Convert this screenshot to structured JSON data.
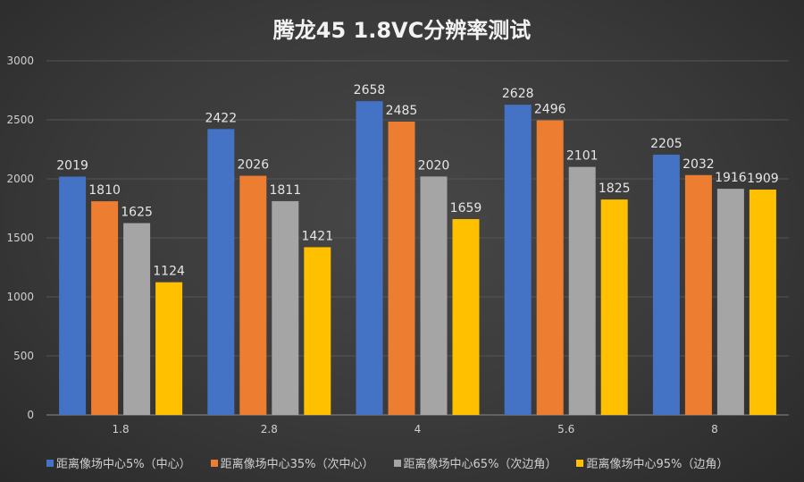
{
  "chart_data": {
    "type": "bar",
    "title": "腾龙45 1.8VC分辨率测试",
    "xlabel": "",
    "ylabel": "",
    "categories": [
      "1.8",
      "2.8",
      "4",
      "5.6",
      "8"
    ],
    "ylim": [
      0,
      3000
    ],
    "yticks": [
      0,
      500,
      1000,
      1500,
      2000,
      2500,
      3000
    ],
    "grid": true,
    "legend_position": "bottom",
    "series": [
      {
        "name": "距离像场中心5%（中心）",
        "color": "#4472c4",
        "values": [
          2019,
          2422,
          2658,
          2628,
          2205
        ]
      },
      {
        "name": "距离像场中心35%（次中心）",
        "color": "#ed7d31",
        "values": [
          1810,
          2026,
          2485,
          2496,
          2032
        ]
      },
      {
        "name": "距离像场中心65%（次边角）",
        "color": "#a5a5a5",
        "values": [
          1625,
          1811,
          2020,
          2101,
          1916
        ]
      },
      {
        "name": "距离像场中心95%（边角）",
        "color": "#ffc000",
        "values": [
          1124,
          1421,
          1659,
          1825,
          1909
        ]
      }
    ]
  }
}
